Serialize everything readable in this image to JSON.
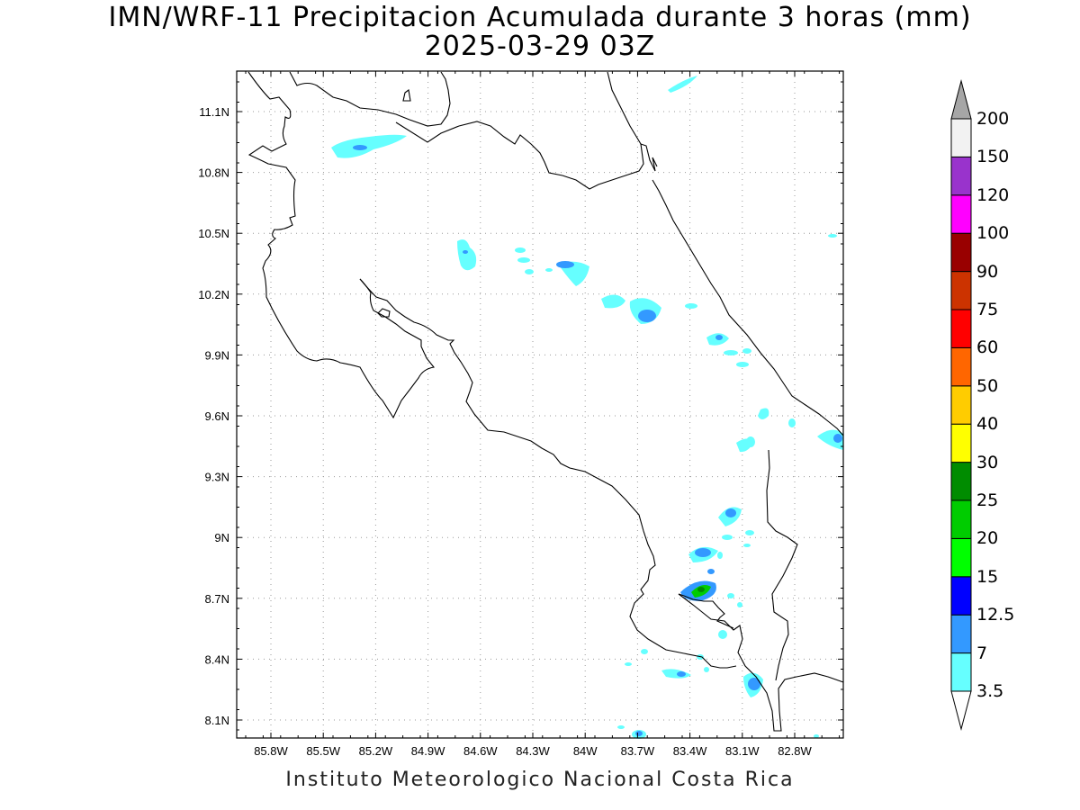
{
  "title": {
    "line1": "IMN/WRF-11 Precipitacion Acumulada durante 3 horas (mm)",
    "line2": "2025-03-29 03Z"
  },
  "footer": "Instituto Meteorologico Nacional Costa Rica",
  "axes": {
    "lon_ticks": [
      "85.8W",
      "85.5W",
      "85.2W",
      "84.9W",
      "84.6W",
      "84.3W",
      "84W",
      "83.7W",
      "83.4W",
      "83.1W",
      "82.8W"
    ],
    "lat_ticks": [
      "11.1N",
      "10.8N",
      "10.5N",
      "10.2N",
      "9.9N",
      "9.6N",
      "9.3N",
      "9N",
      "8.7N",
      "8.4N",
      "8.1N"
    ],
    "grid": "dotted"
  },
  "colorbar": {
    "labels": [
      "3.5",
      "7",
      "12.5",
      "15",
      "20",
      "25",
      "30",
      "40",
      "50",
      "60",
      "75",
      "90",
      "100",
      "120",
      "150",
      "200"
    ],
    "colors": [
      "#ffffff",
      "#66ffff",
      "#3399ff",
      "#0000ff",
      "#00ff00",
      "#00cc00",
      "#008c00",
      "#ffff00",
      "#ffcc00",
      "#ff6600",
      "#ff0000",
      "#cc3300",
      "#990000",
      "#ff00ff",
      "#9933cc",
      "#f2f2f2"
    ],
    "over_color": "#a6a6a6",
    "under_color": "#ffffff"
  },
  "precip_colors": {
    "light": "#66ffff",
    "moderate": "#3399ff",
    "heavy": "#0000ff",
    "green": "#00cc00",
    "dark_green": "#008c00"
  }
}
